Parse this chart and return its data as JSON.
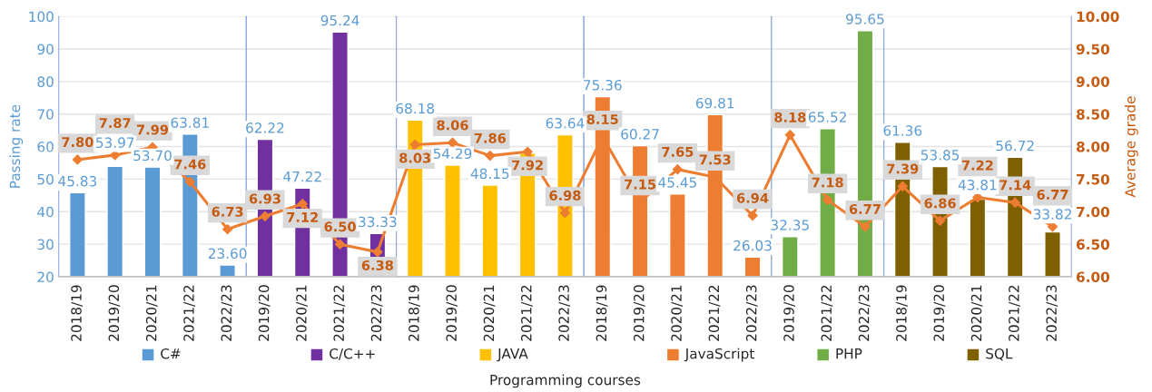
{
  "chart_data": {
    "type": "bar",
    "xlabel": "Programming courses",
    "ylabel": "Passing rate",
    "y2label": "Average grade",
    "categories": [
      "2018/19",
      "2019/20",
      "2020/21",
      "2021/22",
      "2022/23",
      "2019/20",
      "2020/21",
      "2021/22",
      "2022/23",
      "2018/19",
      "2019/20",
      "2020/21",
      "2021/22",
      "2022/23",
      "2018/19",
      "2019/20",
      "2020/21",
      "2021/22",
      "2022/23",
      "2019/20",
      "2021/22",
      "2022/23",
      "2018/19",
      "2019/20",
      "2020/21",
      "2021/22",
      "2022/23"
    ],
    "series": [
      {
        "name": "C#",
        "color": "#5b9bd5",
        "values": [
          45.83,
          53.97,
          53.7,
          63.81,
          23.6,
          null,
          null,
          null,
          null,
          null,
          null,
          null,
          null,
          null,
          null,
          null,
          null,
          null,
          null,
          null,
          null,
          null,
          null,
          null,
          null,
          null,
          null
        ],
        "value_labels": [
          "45.83",
          "53.97",
          "53.70",
          "63.81",
          "23.60",
          null,
          null,
          null,
          null,
          null,
          null,
          null,
          null,
          null,
          null,
          null,
          null,
          null,
          null,
          null,
          null,
          null,
          null,
          null,
          null,
          null,
          null
        ]
      },
      {
        "name": "C/C++",
        "color": "#7030a0",
        "values": [
          null,
          null,
          null,
          null,
          null,
          62.22,
          47.22,
          95.24,
          33.33,
          null,
          null,
          null,
          null,
          null,
          null,
          null,
          null,
          null,
          null,
          null,
          null,
          null,
          null,
          null,
          null,
          null,
          null
        ],
        "value_labels": [
          null,
          null,
          null,
          null,
          null,
          "62.22",
          "47.22",
          "95.24",
          "33.33",
          null,
          null,
          null,
          null,
          null,
          null,
          null,
          null,
          null,
          null,
          null,
          null,
          null,
          null,
          null,
          null,
          null,
          null
        ]
      },
      {
        "name": "JAVA",
        "color": "#ffc000",
        "values": [
          null,
          null,
          null,
          null,
          null,
          null,
          null,
          null,
          null,
          68.18,
          54.29,
          48.15,
          58,
          63.64,
          null,
          null,
          null,
          null,
          null,
          null,
          null,
          null,
          null,
          null,
          null,
          null,
          null
        ],
        "value_labels": [
          null,
          null,
          null,
          null,
          null,
          null,
          null,
          null,
          null,
          "68.18",
          "54.29",
          "48.15",
          null,
          "63.64",
          null,
          null,
          null,
          null,
          null,
          null,
          null,
          null,
          null,
          null,
          null,
          null,
          null
        ]
      },
      {
        "name": "JavaScript",
        "color": "#ed7d31",
        "values": [
          null,
          null,
          null,
          null,
          null,
          null,
          null,
          null,
          null,
          null,
          null,
          null,
          null,
          null,
          75.36,
          60.27,
          45.45,
          69.81,
          26.03,
          null,
          null,
          null,
          null,
          null,
          null,
          null,
          null
        ],
        "value_labels": [
          null,
          null,
          null,
          null,
          null,
          null,
          null,
          null,
          null,
          null,
          null,
          null,
          null,
          null,
          "75.36",
          "60.27",
          "45.45",
          "69.81",
          "26.03",
          null,
          null,
          null,
          null,
          null,
          null,
          null,
          null
        ]
      },
      {
        "name": "PHP",
        "color": "#70ad47",
        "values": [
          null,
          null,
          null,
          null,
          null,
          null,
          null,
          null,
          null,
          null,
          null,
          null,
          null,
          null,
          null,
          null,
          null,
          null,
          null,
          32.35,
          65.52,
          95.65,
          null,
          null,
          null,
          null,
          null
        ],
        "value_labels": [
          null,
          null,
          null,
          null,
          null,
          null,
          null,
          null,
          null,
          null,
          null,
          null,
          null,
          null,
          null,
          null,
          null,
          null,
          null,
          "32.35",
          "65.52",
          "95.65",
          null,
          null,
          null,
          null,
          null
        ]
      },
      {
        "name": "SQL",
        "color": "#7f6000",
        "values": [
          null,
          null,
          null,
          null,
          null,
          null,
          null,
          null,
          null,
          null,
          null,
          null,
          null,
          null,
          null,
          null,
          null,
          null,
          null,
          null,
          null,
          null,
          61.36,
          53.85,
          43.81,
          56.72,
          33.82
        ],
        "value_labels": [
          null,
          null,
          null,
          null,
          null,
          null,
          null,
          null,
          null,
          null,
          null,
          null,
          null,
          null,
          null,
          null,
          null,
          null,
          null,
          null,
          null,
          null,
          "61.36",
          "53.85",
          "43.81",
          "56.72",
          "33.82"
        ]
      },
      {
        "type": "line",
        "axis": "y2",
        "color": "#ed7d31",
        "marker": "diamond",
        "values": [
          7.8,
          7.87,
          7.99,
          7.46,
          6.73,
          6.93,
          7.12,
          6.5,
          6.38,
          8.03,
          8.06,
          7.86,
          7.92,
          6.98,
          8.15,
          7.15,
          7.65,
          7.53,
          6.94,
          8.18,
          7.18,
          6.77,
          7.39,
          6.86,
          7.22,
          7.14,
          6.77
        ],
        "value_labels": [
          "7.80",
          "7.87",
          "7.99",
          "7.46",
          "6.73",
          "6.93",
          "7.12",
          "6.50",
          "6.38",
          "8.03",
          "8.06",
          "7.86",
          "7.92",
          "6.98",
          "8.15",
          "7.15",
          "7.65",
          "7.53",
          "6.94",
          "8.18",
          "7.18",
          "6.77",
          "7.39",
          "6.86",
          "7.22",
          "7.14",
          "6.77"
        ]
      }
    ],
    "ylim": [
      20,
      100
    ],
    "yticks": [
      20,
      30,
      40,
      50,
      60,
      70,
      80,
      90,
      100
    ],
    "y2lim": [
      6,
      10
    ],
    "y2ticks": [
      {
        "value": 6,
        "label": "6.00"
      },
      {
        "value": 6.5,
        "label": "6.50"
      },
      {
        "value": 7,
        "label": "7.00"
      },
      {
        "value": 7.5,
        "label": "7.50"
      },
      {
        "value": 8,
        "label": "8.00"
      },
      {
        "value": 8.5,
        "label": "8.50"
      },
      {
        "value": 9,
        "label": "9.00"
      },
      {
        "value": 9.5,
        "label": "9.50"
      },
      {
        "value": 10,
        "label": "10.00"
      }
    ],
    "grid": "y",
    "legend": "bottom"
  }
}
